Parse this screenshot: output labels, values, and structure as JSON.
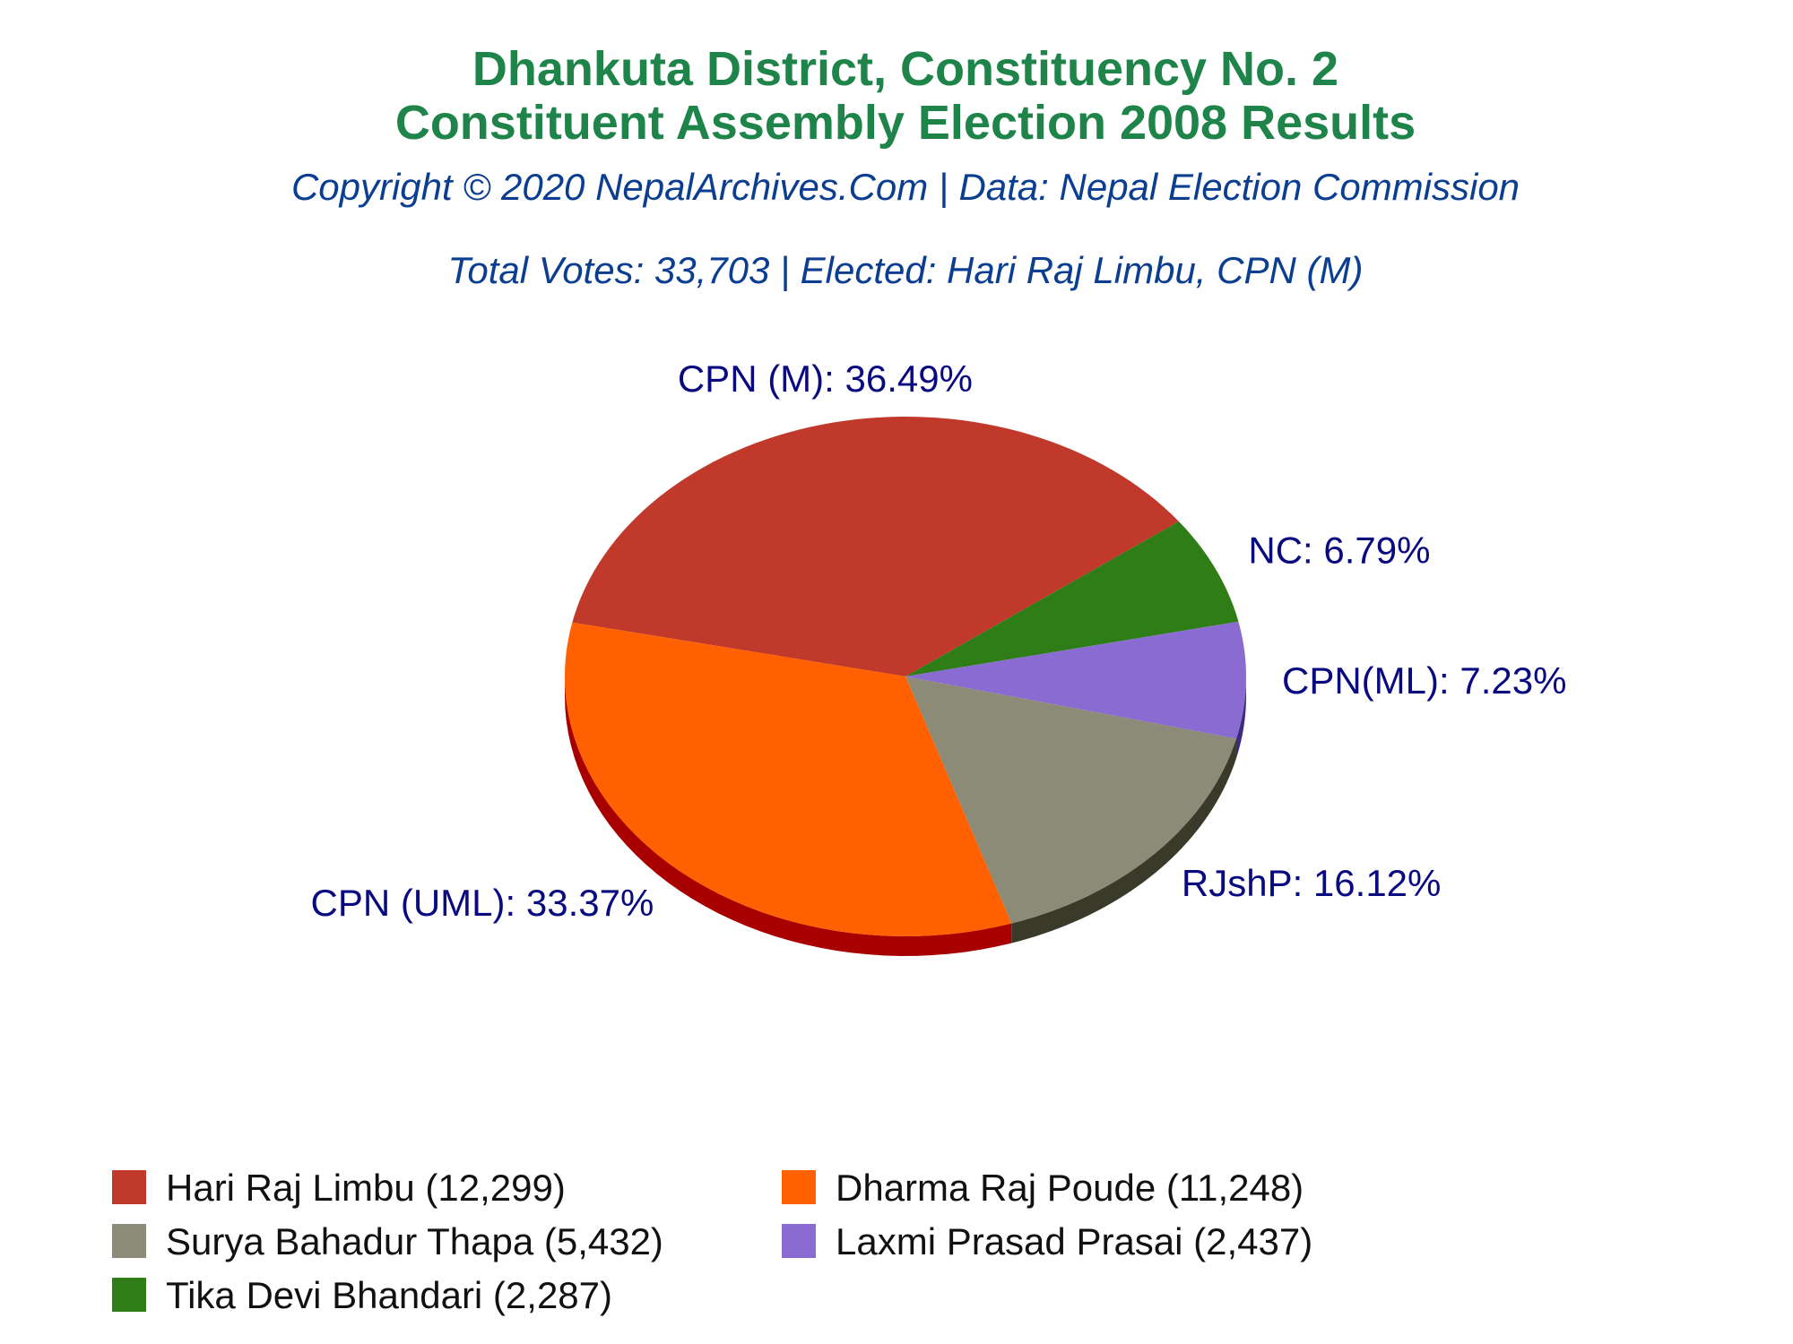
{
  "chart_data": {
    "type": "pie",
    "title": "Dhankuta District, Constituency No. 2",
    "title_line2": "Constituent Assembly Election 2008 Results",
    "subtitle": "Copyright © 2020 NepalArchives.Com | Data: Nepal Election Commission",
    "summary": "Total Votes: 33,703 | Elected: Hari Raj Limbu, CPN (M)",
    "slices": [
      {
        "label": "CPN (M): 36.49%",
        "value": 36.49,
        "legend": "Hari Raj Limbu (12,299)",
        "color": "#c0392b",
        "side": "#8e1b10"
      },
      {
        "label": "NC: 6.79%",
        "value": 6.79,
        "legend": "Tika Devi Bhandari (2,287)",
        "color": "#2e7d16",
        "side": "#1b4d0c"
      },
      {
        "label": "CPN(ML): 7.23%",
        "value": 7.23,
        "legend": "Laxmi Prasad Prasai (2,437)",
        "color": "#8a6bd1",
        "side": "#3d2a80"
      },
      {
        "label": "RJshP: 16.12%",
        "value": 16.12,
        "legend": "Surya Bahadur Thapa (5,432)",
        "color": "#8b8b78",
        "side": "#3a3a2a"
      },
      {
        "label": "CPN (UML): 33.37%",
        "value": 33.37,
        "legend": "Dharma Raj Poude (11,248)",
        "color": "#ff6000",
        "side": "#a80000"
      }
    ],
    "legend_order": [
      0,
      4,
      3,
      2,
      1
    ],
    "legend_placement": "bottom"
  }
}
